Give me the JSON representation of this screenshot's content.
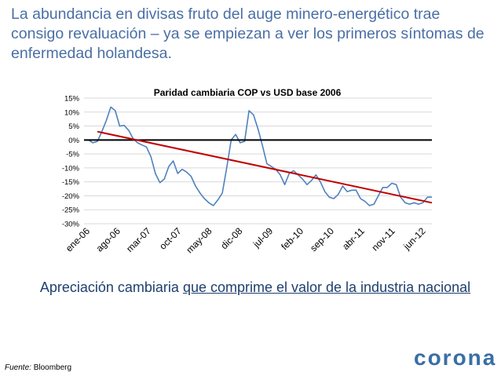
{
  "slide": {
    "headline": "La abundancia en divisas fruto del auge minero-energético trae consigo revaluación – ya se empiezan a ver los primeros síntomas de enfermedad holandesa.",
    "caption_prefix": "Apreciación cambiaria ",
    "caption_underlined": "que comprime  el valor de la industria nacional",
    "source_label": "Fuente:",
    "source_value": " Bloomberg",
    "logo_text": "corona"
  },
  "colors": {
    "headline": "#4a6fa5",
    "series": "#4f81bd",
    "trend": "#c00000",
    "zero_line": "#000000",
    "grid": "#d9d9d9",
    "logo": "#3a6ea5"
  },
  "chart_data": {
    "type": "line",
    "title": "Paridad cambiaria COP vs USD base 2006",
    "ylim": [
      -0.3,
      0.15
    ],
    "y_ticks": [
      0.15,
      0.1,
      0.05,
      0.0,
      -0.05,
      -0.1,
      -0.15,
      -0.2,
      -0.25,
      -0.3
    ],
    "y_tick_labels": [
      "15%",
      "10%",
      "5%",
      "0%",
      "-5%",
      "-10%",
      "-15%",
      "-20%",
      "-25%",
      "-30%"
    ],
    "x_tick_labels": [
      "ene-06",
      "ago-06",
      "mar-07",
      "oct-07",
      "may-08",
      "dic-08",
      "jul-09",
      "feb-10",
      "sep-10",
      "abr-11",
      "nov-11",
      "jun-12"
    ],
    "grid": true,
    "legend": "none",
    "series": [
      {
        "values": [
          0.0,
          0.0,
          -0.01,
          -0.005,
          0.03,
          0.07,
          0.118,
          0.105,
          0.05,
          0.052,
          0.035,
          0.005,
          -0.01,
          -0.018,
          -0.025,
          -0.06,
          -0.12,
          -0.153,
          -0.14,
          -0.095,
          -0.075,
          -0.12,
          -0.105,
          -0.115,
          -0.13,
          -0.165,
          -0.19,
          -0.21,
          -0.225,
          -0.235,
          -0.215,
          -0.19,
          -0.1,
          0.0,
          0.02,
          -0.01,
          -0.005,
          0.105,
          0.09,
          0.04,
          -0.02,
          -0.085,
          -0.095,
          -0.105,
          -0.125,
          -0.16,
          -0.12,
          -0.11,
          -0.125,
          -0.14,
          -0.16,
          -0.145,
          -0.125,
          -0.15,
          -0.185,
          -0.205,
          -0.21,
          -0.195,
          -0.165,
          -0.185,
          -0.18,
          -0.18,
          -0.21,
          -0.22,
          -0.235,
          -0.23,
          -0.2,
          -0.17,
          -0.17,
          -0.155,
          -0.16,
          -0.205,
          -0.225,
          -0.23,
          -0.225,
          -0.23,
          -0.225,
          -0.205,
          -0.205
        ]
      }
    ],
    "trendline": {
      "start": 0.03,
      "end": -0.225
    }
  }
}
